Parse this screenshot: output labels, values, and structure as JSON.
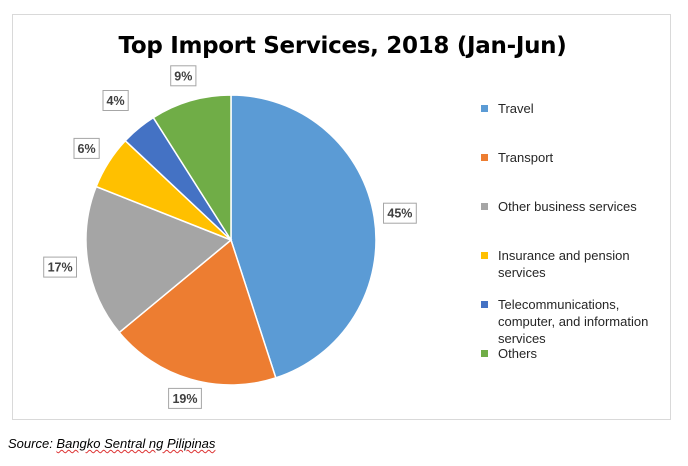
{
  "chart_data": {
    "type": "pie",
    "title": "Top Import Services, 2018 (Jan-Jun)",
    "slices": [
      {
        "label": "Travel",
        "value": 45,
        "display": "45%",
        "color": "#5b9bd5"
      },
      {
        "label": "Transport",
        "value": 19,
        "display": "19%",
        "color": "#ed7d31"
      },
      {
        "label": "Other business services",
        "value": 17,
        "display": "17%",
        "color": "#a5a5a5"
      },
      {
        "label": "Insurance and pension services",
        "value": 6,
        "display": "6%",
        "color": "#ffc000"
      },
      {
        "label": "Telecommunications, computer, and information services",
        "value": 4,
        "display": "4%",
        "color": "#4472c4"
      },
      {
        "label": "Others",
        "value": 9,
        "display": "9%",
        "color": "#70ad47"
      }
    ],
    "legend_position": "right"
  },
  "source": {
    "prefix": "Source: ",
    "name": "Bangko Sentral ng Pilipinas"
  }
}
